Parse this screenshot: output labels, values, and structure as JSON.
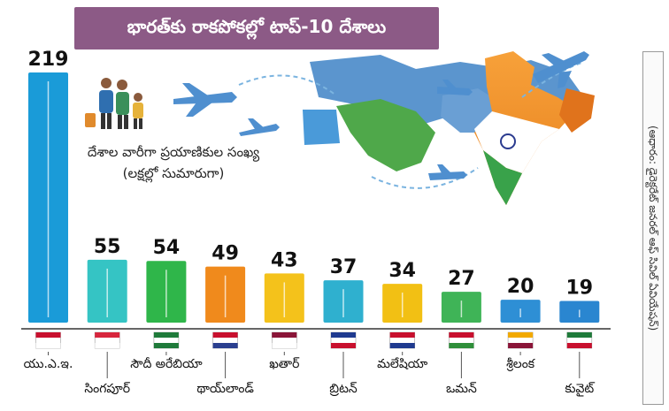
{
  "title": "భారత్‌కు రాకపోకల్లో టాప్‌-10 దేశాలు",
  "note_line1": "దేశాల వారీగా ప్రయాణికుల సంఖ్య",
  "note_line2": "(లక్షల్లో సుమారుగా)",
  "source": "(ఆధారం: డైరెక్టరేట్ జనరల్ ఆఫ్ సివిల్ ఏవియేషన్)",
  "colors": {
    "title_bg": "#8c5a86"
  },
  "chart_data": {
    "type": "bar",
    "title": "భారత్‌కు రాకపోకల్లో టాప్‌-10 దేశాలు",
    "ylabel": "దేశాల వారీగా ప్రయాణికుల సంఖ్య (లక్షల్లో సుమారుగా)",
    "xlabel": "",
    "ylim": [
      0,
      219
    ],
    "grid": false,
    "categories": [
      "యు.ఎ.ఇ.",
      "సింగపూర్",
      "సౌదీ అరేబియా",
      "థాయ్‌లాండ్",
      "ఖతార్",
      "బ్రిటన్",
      "మలేషియా",
      "ఒమన్",
      "శ్రీలంక",
      "కువైట్"
    ],
    "values": [
      219,
      55,
      54,
      49,
      43,
      37,
      34,
      27,
      20,
      19
    ],
    "bar_colors": [
      "#1a9bd8",
      "#35c4c4",
      "#2fb64a",
      "#f08a1c",
      "#f4c21b",
      "#2fb0cf",
      "#f2c014",
      "#3fb457",
      "#2e8fd5",
      "#2a86d0"
    ],
    "flags": [
      "uae-flag",
      "singapore-flag",
      "saudi-flag",
      "thailand-flag",
      "qatar-flag",
      "uk-flag",
      "malaysia-flag",
      "oman-flag",
      "srilanka-flag",
      "kuwait-flag"
    ]
  }
}
